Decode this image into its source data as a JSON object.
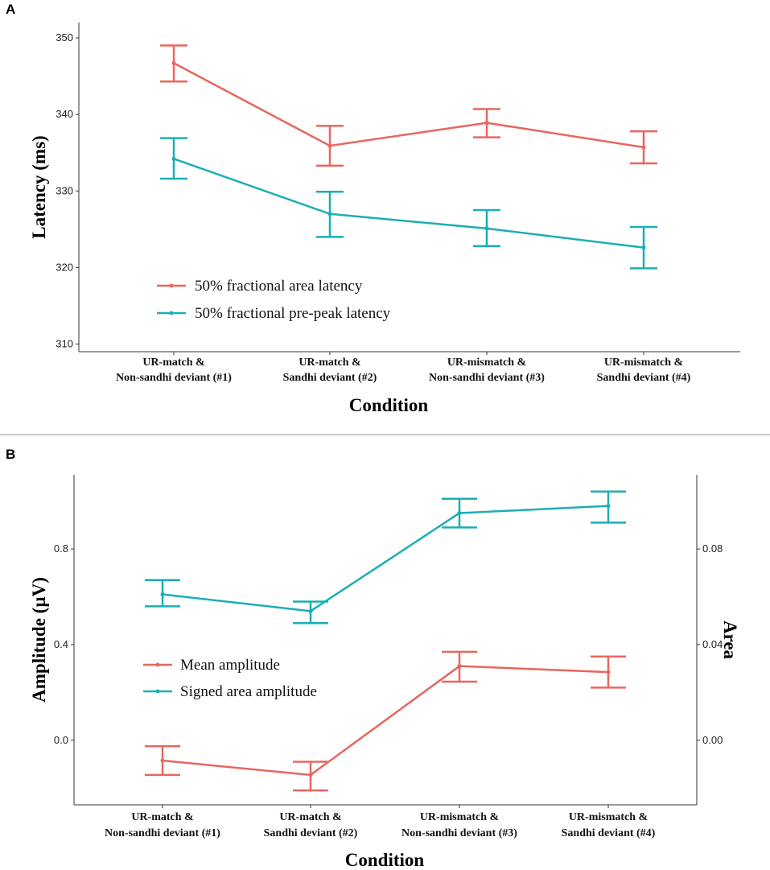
{
  "chart_data": [
    {
      "panel": "A",
      "type": "line",
      "categories": [
        "UR-match &\nNon-sandhi deviant (#1)",
        "UR-match &\nSandhi deviant (#2)",
        "UR-mismatch &\nNon-sandhi deviant (#3)",
        "UR-mismatch &\nSandhi deviant (#4)"
      ],
      "xlabel": "Condition",
      "ylabel": "Latency (ms)",
      "ylim": [
        309,
        352
      ],
      "yticks": [
        310,
        320,
        330,
        340,
        350
      ],
      "legend_position": "bottom-left",
      "series": [
        {
          "name": "50% fractional area latency",
          "color": "#e8665e",
          "values": [
            346.7,
            335.9,
            338.9,
            335.7
          ],
          "err_low": [
            344.3,
            333.3,
            337.0,
            333.6
          ],
          "err_high": [
            349.0,
            338.5,
            340.7,
            337.8
          ]
        },
        {
          "name": "50% fractional pre-peak latency",
          "color": "#1aafb5",
          "values": [
            334.2,
            327.0,
            325.1,
            322.6
          ],
          "err_low": [
            331.6,
            324.0,
            322.8,
            319.9
          ],
          "err_high": [
            336.9,
            329.9,
            327.5,
            325.3
          ]
        }
      ]
    },
    {
      "panel": "B",
      "type": "line",
      "categories": [
        "UR-match &\nNon-sandhi deviant (#1)",
        "UR-match &\nSandhi deviant (#2)",
        "UR-mismatch &\nNon-sandhi deviant (#3)",
        "UR-mismatch &\nSandhi deviant (#4)"
      ],
      "xlabel": "Condition",
      "ylabel": "Amplitude (µV)",
      "y2label": "Area",
      "ylim": [
        -0.27,
        1.11
      ],
      "yticks": [
        0.0,
        0.4,
        0.8
      ],
      "ytick_labels": [
        "0.0",
        "0.4",
        "0.8"
      ],
      "y2ticks": [
        0.0,
        0.04,
        0.08
      ],
      "y2tick_labels": [
        "0.00",
        "0.04",
        "0.08"
      ],
      "legend_position": "center-left",
      "series": [
        {
          "name": "Mean amplitude",
          "color": "#e8665e",
          "axis": "left",
          "values": [
            -0.085,
            -0.145,
            0.31,
            0.285
          ],
          "err_low": [
            -0.145,
            -0.21,
            0.245,
            0.22
          ],
          "err_high": [
            -0.025,
            -0.09,
            0.37,
            0.35
          ]
        },
        {
          "name": "Signed area amplitude",
          "color": "#1aafb5",
          "axis": "right",
          "values": [
            0.061,
            0.054,
            0.095,
            0.098
          ],
          "err_low": [
            0.056,
            0.049,
            0.089,
            0.091
          ],
          "err_high": [
            0.067,
            0.058,
            0.101,
            0.104
          ]
        }
      ]
    }
  ]
}
